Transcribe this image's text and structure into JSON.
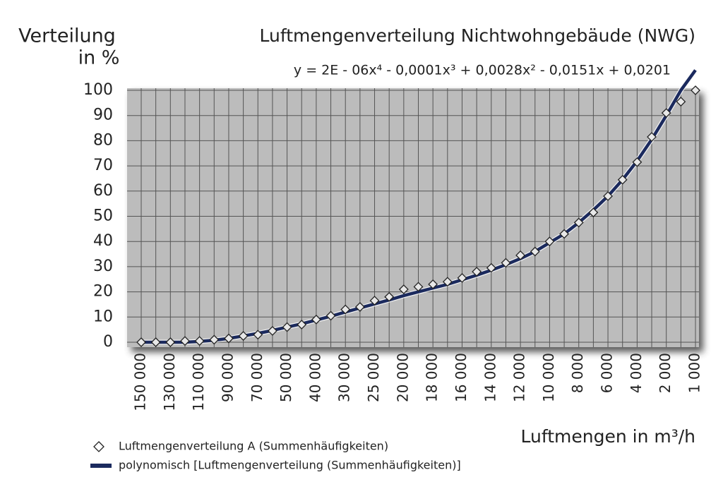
{
  "chart_data": {
    "type": "line",
    "title": "Luftmengenverteilung Nichtwohngebäude (NWG)",
    "equation": "y = 2E - 06x⁴ - 0,0001x³ + 0,0028x² - 0,0151x + 0,0201",
    "y_label": [
      "Verteilung",
      "in %"
    ],
    "x_label": "Luftmengen in m³/h",
    "categories": [
      "150 000",
      null,
      "130 000",
      null,
      "110 000",
      null,
      "90 000",
      null,
      "70 000",
      null,
      "50 000",
      null,
      "40 000",
      null,
      "30 000",
      null,
      "25 000",
      null,
      "20 000",
      null,
      "18 000",
      null,
      "16 000",
      null,
      "14 000",
      null,
      "12 000",
      null,
      "10 000",
      null,
      "8 000",
      null,
      "6 000",
      null,
      "4 000",
      null,
      "2 000",
      null,
      "1 000"
    ],
    "series": [
      {
        "name": "Luftmengenverteilung A (Summenhäufigkeiten)",
        "color": "#222222",
        "marker": "diamond",
        "values": [
          0,
          0,
          0,
          0.5,
          0.5,
          1,
          1.5,
          2.5,
          3,
          4.5,
          6,
          7,
          9,
          10.5,
          13,
          14,
          16.5,
          18,
          21,
          22,
          23,
          24,
          25.5,
          28,
          29.5,
          31.5,
          34.5,
          36,
          40,
          43,
          47.5,
          51.5,
          58,
          64.5,
          71.5,
          81.5,
          91,
          95.5,
          100
        ]
      },
      {
        "name": "polynomisch [Luftmengenverteilung (Summenhäufigkeiten)]",
        "color": "#1b2a5e",
        "marker": "line",
        "values": [
          0,
          0,
          0,
          0,
          0.3,
          0.8,
          1.5,
          2.5,
          3.5,
          4.7,
          6,
          7.3,
          8.8,
          10.3,
          12,
          13.6,
          15.2,
          16.8,
          18.5,
          20,
          21.5,
          23,
          24.8,
          26.6,
          28.6,
          30.8,
          33.2,
          36,
          39.5,
          43,
          47.5,
          52.5,
          58,
          64.5,
          72,
          80.5,
          90,
          100,
          108
        ]
      }
    ],
    "ylim": [
      0,
      100
    ],
    "yticks": [
      0,
      10,
      20,
      30,
      40,
      50,
      60,
      70,
      80,
      90,
      100
    ],
    "grid": true
  }
}
